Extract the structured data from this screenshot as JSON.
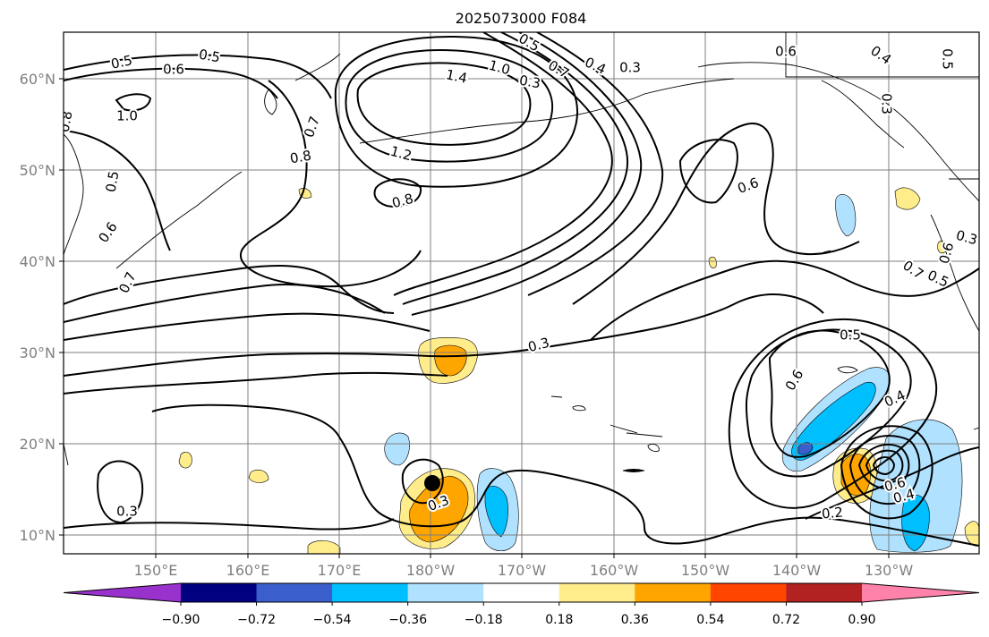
{
  "title": "2025073000 F084",
  "lat_labels": [
    "60°N",
    "50°N",
    "40°N",
    "30°N",
    "20°N",
    "10°N"
  ],
  "lon_labels": [
    "150°E",
    "160°E",
    "170°E",
    "180°W",
    "170°W",
    "160°W",
    "150°W",
    "140°W",
    "130°W"
  ],
  "colorbar": {
    "colors": [
      "#9932cc",
      "#000080",
      "#3a5fcd",
      "#00bfff",
      "#b0e2ff",
      "#ffffff",
      "#ffec8b",
      "#ffa500",
      "#ff4500",
      "#b22222",
      "#ff82ab"
    ],
    "tick_labels": [
      "−0.90",
      "−0.72",
      "−0.54",
      "−0.36",
      "−0.18",
      "0.18",
      "0.36",
      "0.54",
      "0.72",
      "0.90"
    ]
  },
  "contour_labels": [
    "0.5",
    "0.6",
    "0.5",
    "1.0",
    "1.4",
    "1.0",
    "0.5",
    "0.7",
    "0.4",
    "0.3",
    "0.6",
    "0.4",
    "0.5",
    "0.3",
    "0.7",
    "0.8",
    "1.2",
    "0.8",
    "0.5",
    "0.6",
    "0.7",
    "0.6",
    "0.7",
    "0.5",
    "0.6",
    "0.3",
    "0.3",
    "0.5",
    "0.6",
    "0.4",
    "0.3",
    "0.3",
    "0.6",
    "0.4",
    "0.2",
    "0.8",
    "0.3"
  ],
  "marker": "storm-center"
}
